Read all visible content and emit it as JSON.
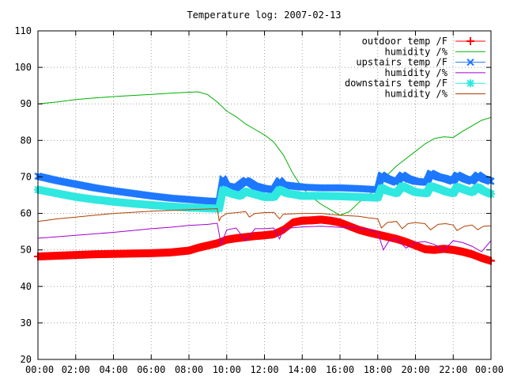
{
  "chart_data": {
    "type": "line",
    "title": "Temperature log: 2007-02-13",
    "xlabel": "",
    "ylabel": "",
    "ylim": [
      20,
      110
    ],
    "xlim": [
      0,
      24
    ],
    "grid": true,
    "legend_position": "top-right",
    "y_ticks": [
      20,
      30,
      40,
      50,
      60,
      70,
      80,
      90,
      100,
      110
    ],
    "x_ticks": [
      {
        "value": 0,
        "label": "00:00"
      },
      {
        "value": 2,
        "label": "02:00"
      },
      {
        "value": 4,
        "label": "04:00"
      },
      {
        "value": 6,
        "label": "06:00"
      },
      {
        "value": 8,
        "label": "08:00"
      },
      {
        "value": 10,
        "label": "10:00"
      },
      {
        "value": 12,
        "label": "12:00"
      },
      {
        "value": 14,
        "label": "14:00"
      },
      {
        "value": 16,
        "label": "16:00"
      },
      {
        "value": 18,
        "label": "18:00"
      },
      {
        "value": 20,
        "label": "20:00"
      },
      {
        "value": 22,
        "label": "22:00"
      },
      {
        "value": 24,
        "label": "00:00"
      }
    ],
    "series": [
      {
        "name": "outdoor temp /F",
        "color": "#ff0000",
        "style": "points",
        "marker": "plus",
        "x": [
          0,
          1,
          2,
          3,
          4,
          5,
          6,
          7,
          8,
          8.5,
          9,
          9.5,
          10,
          10.5,
          11,
          11.5,
          12,
          12.5,
          13,
          13.5,
          14,
          14.5,
          15,
          15.5,
          16,
          16.5,
          17,
          17.5,
          18,
          18.5,
          19,
          19.5,
          20,
          20.5,
          21,
          21.5,
          22,
          22.5,
          23,
          23.5,
          24
        ],
        "y": [
          48.2,
          48.4,
          48.6,
          48.8,
          48.9,
          49.0,
          49.1,
          49.3,
          49.8,
          50.6,
          51.2,
          51.8,
          52.8,
          53.2,
          53.5,
          53.8,
          54.0,
          54.3,
          55.5,
          57.5,
          58.0,
          58.1,
          58.3,
          58.0,
          57.5,
          56.5,
          55.5,
          54.8,
          54.2,
          53.6,
          53.0,
          52.2,
          51.2,
          50.2,
          50.0,
          50.3,
          50.0,
          49.5,
          48.8,
          47.8,
          47.0
        ]
      },
      {
        "name": "humidity /%",
        "color": "#00b000",
        "style": "lines",
        "x": [
          0,
          1,
          2,
          3,
          4,
          5,
          6,
          7,
          8,
          8.5,
          9,
          9.5,
          10,
          10.5,
          11,
          11.5,
          12,
          12.5,
          13,
          13.5,
          14,
          14.5,
          15,
          15.5,
          16,
          16.5,
          17,
          17.5,
          18,
          18.5,
          19,
          19.5,
          20,
          20.5,
          21,
          21.5,
          22,
          22.5,
          23,
          23.5,
          24
        ],
        "y": [
          90,
          90.5,
          91.2,
          91.6,
          92.0,
          92.3,
          92.6,
          92.9,
          93.2,
          93.3,
          92.5,
          90.5,
          88.0,
          86.5,
          84.5,
          83.0,
          81.5,
          79.5,
          76.0,
          71.0,
          67.0,
          64.5,
          62.5,
          61.0,
          59.5,
          60.5,
          63.0,
          65.0,
          67.0,
          70.5,
          73.0,
          75.0,
          77.0,
          79.0,
          80.5,
          81.0,
          80.8,
          82.5,
          84.0,
          85.5,
          86.3
        ]
      },
      {
        "name": "upstairs temp /F",
        "color": "#1e78ff",
        "style": "points",
        "marker": "cross",
        "x": [
          0,
          1,
          2,
          3,
          4,
          5,
          6,
          7,
          8,
          9,
          9.6,
          9.8,
          10.0,
          10.5,
          11.0,
          11.2,
          11.5,
          12,
          12.5,
          12.8,
          13.0,
          13.5,
          14,
          15,
          16,
          17,
          18,
          18.2,
          18.5,
          19,
          19.3,
          19.6,
          20,
          20.6,
          20.8,
          21.2,
          21.6,
          22,
          22.2,
          22.6,
          23,
          23.3,
          23.6,
          24
        ],
        "y": [
          70.2,
          69.0,
          68.0,
          67.0,
          66.2,
          65.5,
          64.8,
          64.2,
          63.8,
          63.4,
          63.2,
          69.5,
          67.5,
          67.0,
          69.0,
          68.5,
          67.5,
          66.8,
          66.5,
          69.0,
          67.8,
          67.5,
          67.2,
          67.0,
          67.0,
          66.8,
          66.5,
          70.5,
          69.5,
          68.5,
          70.5,
          69.5,
          68.8,
          68.5,
          71.0,
          70.0,
          69.5,
          68.8,
          70.5,
          69.5,
          68.8,
          70.5,
          69.5,
          68.8
        ]
      },
      {
        "name": "humidity /%",
        "color": "#a000d0",
        "style": "lines",
        "x": [
          0,
          1,
          2,
          3,
          4,
          5,
          6,
          7,
          8,
          9,
          9.5,
          9.7,
          10.0,
          10.5,
          11,
          11.5,
          12,
          12.5,
          12.8,
          13.0,
          14,
          15,
          16,
          17,
          17.5,
          18,
          18.3,
          18.6,
          19,
          19.5,
          20,
          20.5,
          21,
          21.5,
          22,
          22.5,
          23,
          23.5,
          24
        ],
        "y": [
          53.2,
          53.6,
          54.0,
          54.4,
          54.8,
          55.3,
          55.8,
          56.2,
          56.7,
          57.0,
          57.3,
          51.5,
          55.5,
          56.0,
          52.5,
          55.8,
          55.8,
          56.0,
          53.0,
          55.8,
          56.3,
          56.5,
          56.2,
          56.0,
          55.5,
          54.8,
          50.0,
          52.5,
          53.0,
          50.5,
          52.0,
          52.3,
          51.5,
          50.0,
          52.5,
          52.0,
          51.0,
          49.5,
          52.5
        ]
      },
      {
        "name": "downstairs temp /F",
        "color": "#30e8e0",
        "style": "points",
        "marker": "star",
        "x": [
          0,
          1,
          2,
          3,
          4,
          5,
          6,
          7,
          8,
          9,
          9.6,
          9.8,
          10.2,
          10.7,
          11.0,
          11.3,
          11.8,
          12,
          12.5,
          12.8,
          13.2,
          13.8,
          14,
          15,
          16,
          17,
          18,
          18.2,
          18.5,
          19,
          19.3,
          19.7,
          20,
          20.6,
          20.8,
          21.2,
          21.6,
          22,
          22.2,
          22.6,
          23,
          23.3,
          23.6,
          24
        ],
        "y": [
          66.5,
          65.5,
          64.5,
          63.8,
          63.2,
          62.7,
          62.3,
          61.9,
          61.6,
          61.4,
          61.3,
          66.5,
          65.5,
          64.8,
          66.0,
          65.5,
          64.8,
          64.5,
          64.5,
          66.5,
          65.5,
          65.0,
          64.8,
          64.8,
          64.7,
          64.5,
          64.3,
          67.0,
          66.2,
          65.5,
          67.5,
          66.5,
          65.8,
          65.5,
          67.5,
          66.8,
          66.0,
          65.5,
          67.3,
          66.5,
          65.8,
          67.2,
          66.2,
          65.3
        ]
      },
      {
        "name": "humidity /%",
        "color": "#b04000",
        "style": "lines",
        "x": [
          0,
          1,
          2,
          3,
          4,
          5,
          6,
          7,
          8,
          9,
          9.5,
          9.6,
          9.7,
          10,
          10.5,
          11,
          11.2,
          11.5,
          12,
          12.5,
          12.8,
          13,
          14,
          15,
          16,
          17,
          17.5,
          18,
          18.2,
          18.5,
          19,
          19.3,
          19.6,
          20,
          20.5,
          20.8,
          21.2,
          21.6,
          22,
          22.2,
          22.6,
          23,
          23.3,
          23.6,
          24
        ],
        "y": [
          57.8,
          58.5,
          59.0,
          59.5,
          60.0,
          60.3,
          60.6,
          60.8,
          61.0,
          61.2,
          61.3,
          58.0,
          59.0,
          60.0,
          60.2,
          60.5,
          59.0,
          60.0,
          60.2,
          60.3,
          58.5,
          59.8,
          60.0,
          60.0,
          59.5,
          59.2,
          58.8,
          58.5,
          56.0,
          57.5,
          57.8,
          55.8,
          57.2,
          57.5,
          57.2,
          55.5,
          57.0,
          57.2,
          56.8,
          55.3,
          56.5,
          56.8,
          55.5,
          56.5,
          56.6
        ]
      }
    ]
  }
}
